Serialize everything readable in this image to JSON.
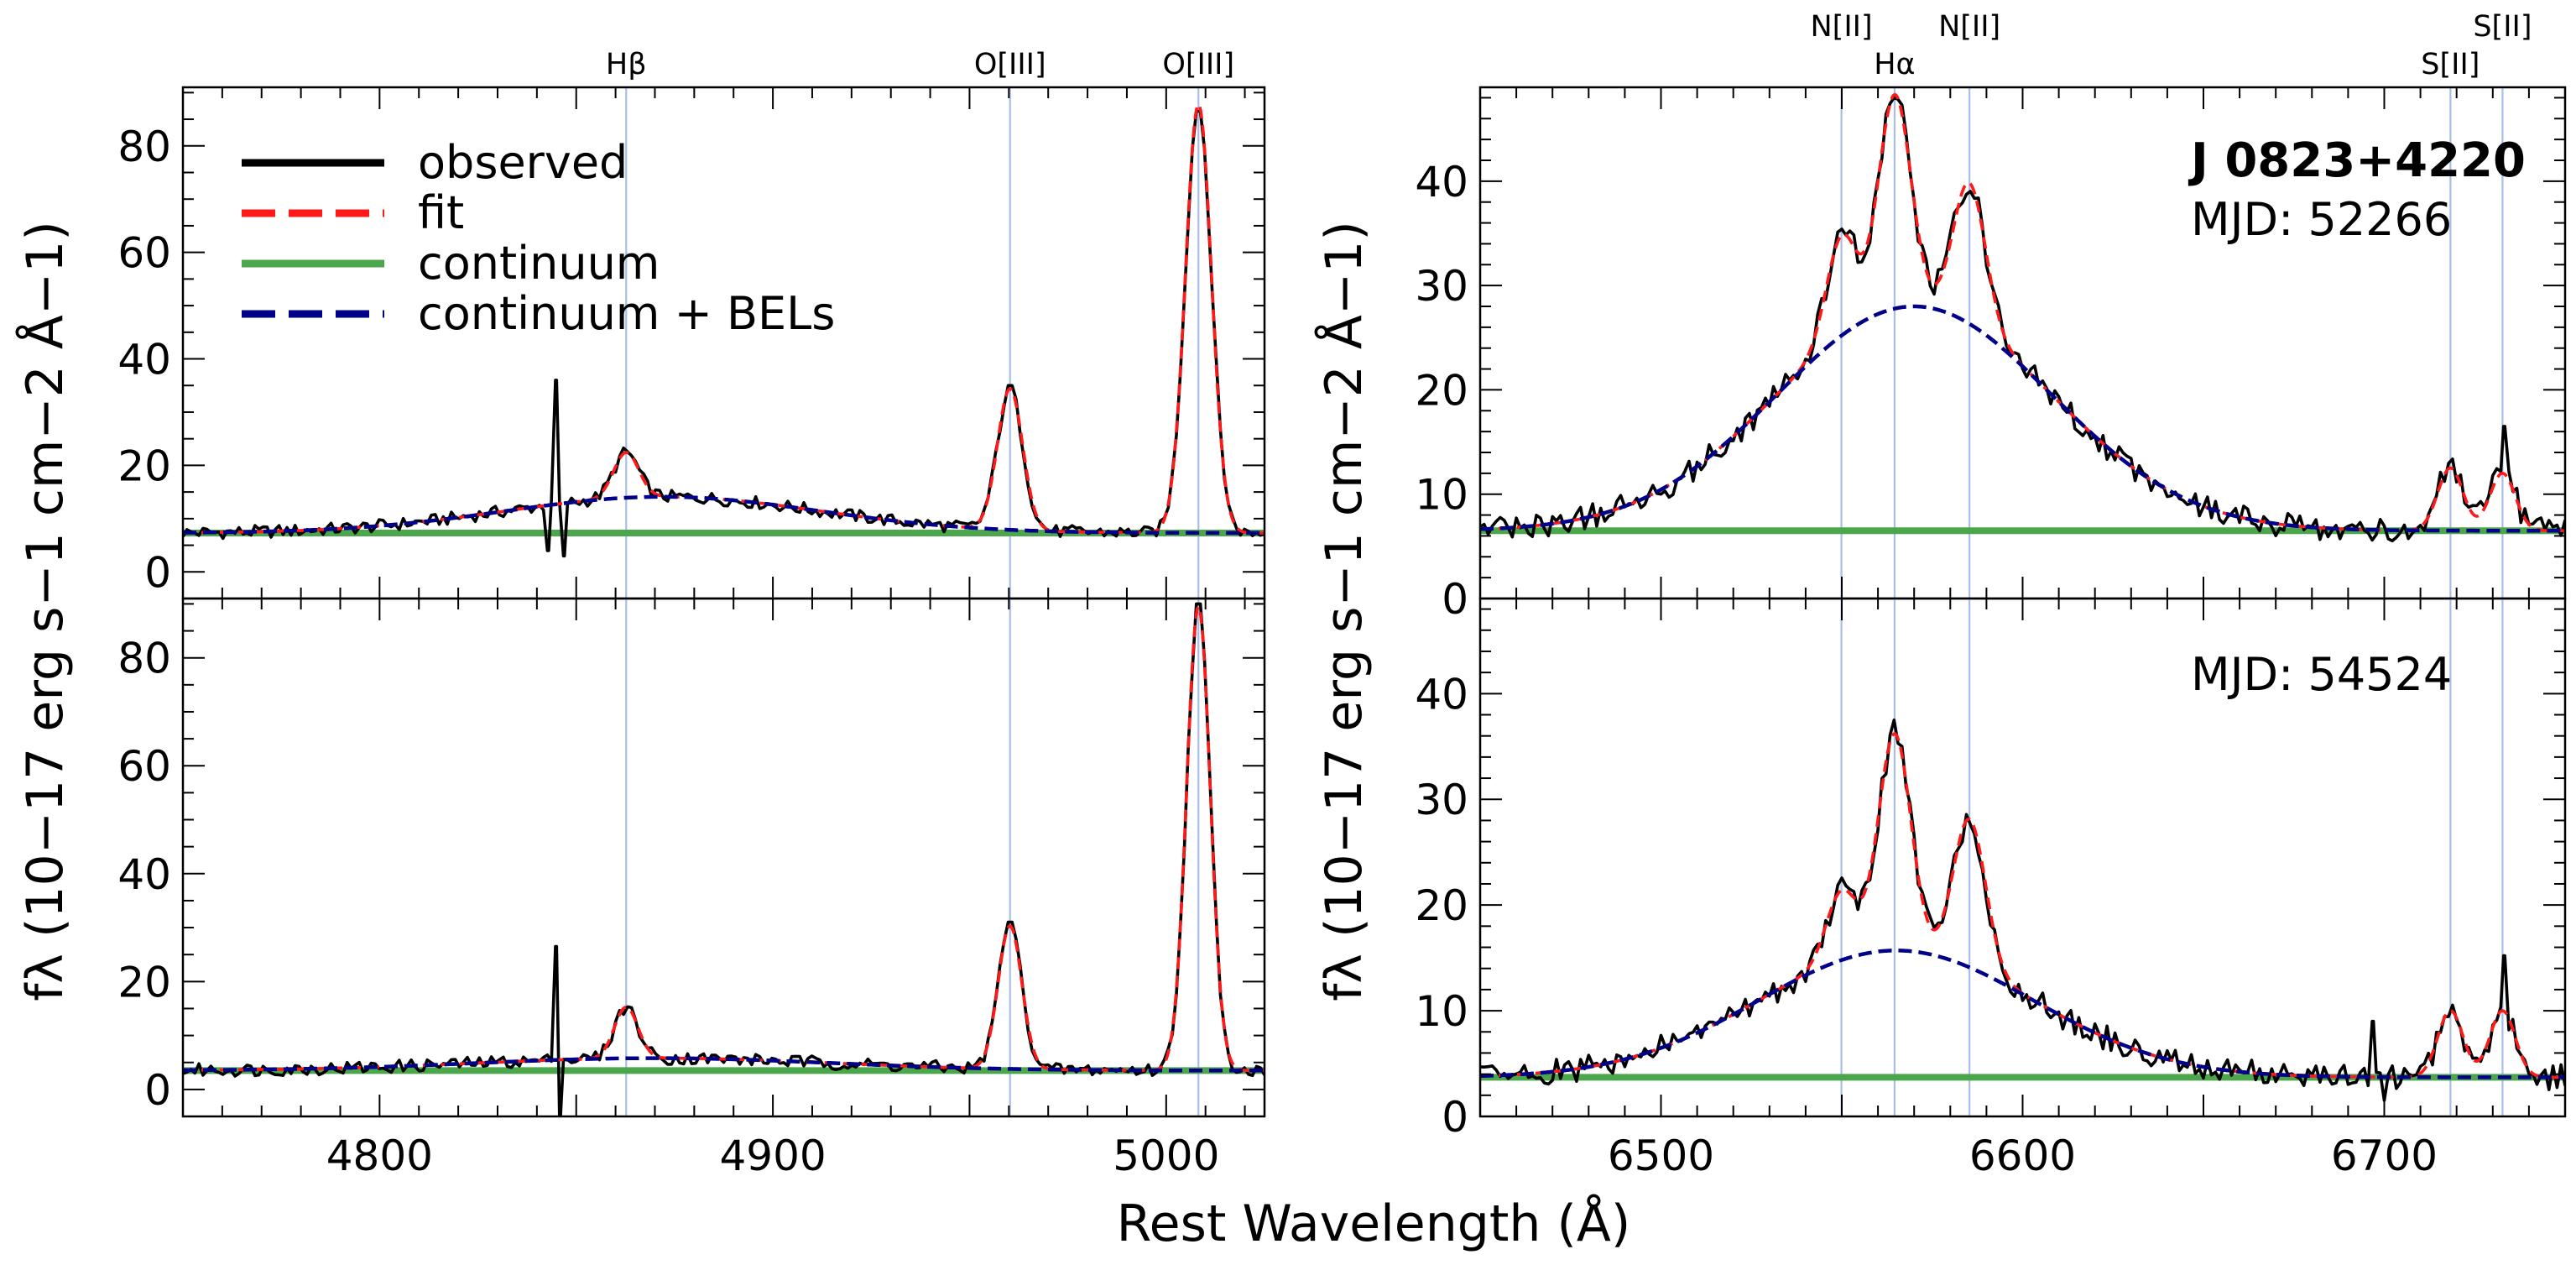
{
  "chart_data": {
    "type": "line",
    "figure": {
      "xlabel": "Rest Wavelength (Å)",
      "ylabel": "fλ (10−17 erg s−1 cm−2 Å−1)",
      "object_name": "J 0823+4220"
    },
    "legend": {
      "placement": "top-left of top-left panel",
      "entries": [
        {
          "key": "observed",
          "label": "observed",
          "color": "#000000",
          "style": "solid"
        },
        {
          "key": "fit",
          "label": "fit",
          "color": "#ff1a1a",
          "style": "dashed"
        },
        {
          "key": "continuum",
          "label": "continuum",
          "color": "#4ca64c",
          "style": "solid"
        },
        {
          "key": "cont_bel",
          "label": "continuum + BELs",
          "color": "#00008b",
          "style": "dashed"
        }
      ]
    },
    "columns": [
      {
        "id": "hbeta",
        "xlim": [
          4750,
          5025
        ],
        "xticks": [
          4800,
          4900,
          5000
        ],
        "ylim": [
          -5,
          91
        ],
        "yticks": [
          0,
          20,
          40,
          60,
          80
        ],
        "line_markers": [
          {
            "name": "Hβ",
            "wave": 4862.7
          },
          {
            "name": "O[III]",
            "wave": 4960.3
          },
          {
            "name": "O[III]",
            "wave": 5008.2
          }
        ],
        "panels": [
          {
            "mjd": "52266",
            "continuum": 7.3,
            "bel_components": [
              {
                "center": 4872,
                "amp": 6.8,
                "sigma": 40
              }
            ],
            "narrow_components": [
              {
                "center": 4862.7,
                "amp": 8.5,
                "sigma": 3.2
              },
              {
                "center": 4960.3,
                "amp": 26.5,
                "sigma": 3.2
              },
              {
                "center": 5008.2,
                "amp": 80.5,
                "sigma": 3.3
              }
            ],
            "spikes": [
              {
                "wave": 4845,
                "value": 36
              },
              {
                "wave": 4843,
                "value": 4
              },
              {
                "wave": 4847,
                "value": 3
              }
            ],
            "observed_deviations": [
              {
                "wave": 5008.2,
                "value": 86.5
              },
              {
                "wave": 4960.3,
                "value": 35
              }
            ]
          },
          {
            "mjd": "54524",
            "continuum": 3.5,
            "bel_components": [
              {
                "center": 4870,
                "amp": 2.3,
                "sigma": 45
              }
            ],
            "narrow_components": [
              {
                "center": 4862.7,
                "amp": 9.5,
                "sigma": 3.0
              },
              {
                "center": 4960.3,
                "amp": 26.5,
                "sigma": 3.0
              },
              {
                "center": 5008.2,
                "amp": 86,
                "sigma": 3.0
              }
            ],
            "spikes": [
              {
                "wave": 4845,
                "value": 26.5
              },
              {
                "wave": 4846,
                "value": -5
              }
            ],
            "observed_deviations": [
              {
                "wave": 5008.2,
                "value": 90
              },
              {
                "wave": 4960.3,
                "value": 31
              }
            ]
          }
        ]
      },
      {
        "id": "halpha",
        "xlim": [
          6450,
          6750
        ],
        "xticks": [
          6500,
          6600,
          6700
        ],
        "ylim": [
          0,
          49
        ],
        "yticks": [
          0,
          10,
          20,
          30,
          40
        ],
        "line_markers": [
          {
            "name": "N[II]",
            "wave": 6549.9,
            "row": "upper"
          },
          {
            "name": "Hα",
            "wave": 6564.6,
            "row": "lower"
          },
          {
            "name": "N[II]",
            "wave": 6585.3,
            "row": "upper"
          },
          {
            "name": "S[II]",
            "wave": 6718.3,
            "row": "lower"
          },
          {
            "name": "S[II]",
            "wave": 6732.7,
            "row": "upper"
          }
        ],
        "panels": [
          {
            "mjd": "52266",
            "continuum": 6.5,
            "bel_components": [
              {
                "center": 6570,
                "amp": 21.5,
                "sigma": 38
              }
            ],
            "narrow_components": [
              {
                "center": 6549.9,
                "amp": 9.5,
                "sigma": 4.2
              },
              {
                "center": 6564.6,
                "amp": 20.5,
                "sigma": 4.5
              },
              {
                "center": 6585.3,
                "amp": 13.5,
                "sigma": 4.5
              },
              {
                "center": 6718.3,
                "amp": 6.0,
                "sigma": 3.5
              },
              {
                "center": 6732.7,
                "amp": 5.5,
                "sigma": 3.5
              }
            ],
            "spikes": [
              {
                "wave": 6733,
                "value": 16.5
              }
            ],
            "observed_deviations": [
              {
                "wave": 6564.6,
                "value": 48
              }
            ]
          },
          {
            "mjd": "54524",
            "continuum": 3.7,
            "bel_components": [
              {
                "center": 6565,
                "amp": 12,
                "sigma": 38
              }
            ],
            "narrow_components": [
              {
                "center": 6549.9,
                "amp": 6.5,
                "sigma": 4.2
              },
              {
                "center": 6564.6,
                "amp": 20.5,
                "sigma": 4.5
              },
              {
                "center": 6585.3,
                "amp": 14,
                "sigma": 4.5
              },
              {
                "center": 6718.3,
                "amp": 6.3,
                "sigma": 3.5
              },
              {
                "center": 6732.7,
                "amp": 6.3,
                "sigma": 3.5
              }
            ],
            "spikes": [
              {
                "wave": 6733,
                "value": 15.2
              },
              {
                "wave": 6700,
                "value": 1.5
              },
              {
                "wave": 6697,
                "value": 9
              }
            ],
            "observed_deviations": [
              {
                "wave": 6564.6,
                "value": 37.5
              }
            ]
          }
        ]
      }
    ]
  }
}
